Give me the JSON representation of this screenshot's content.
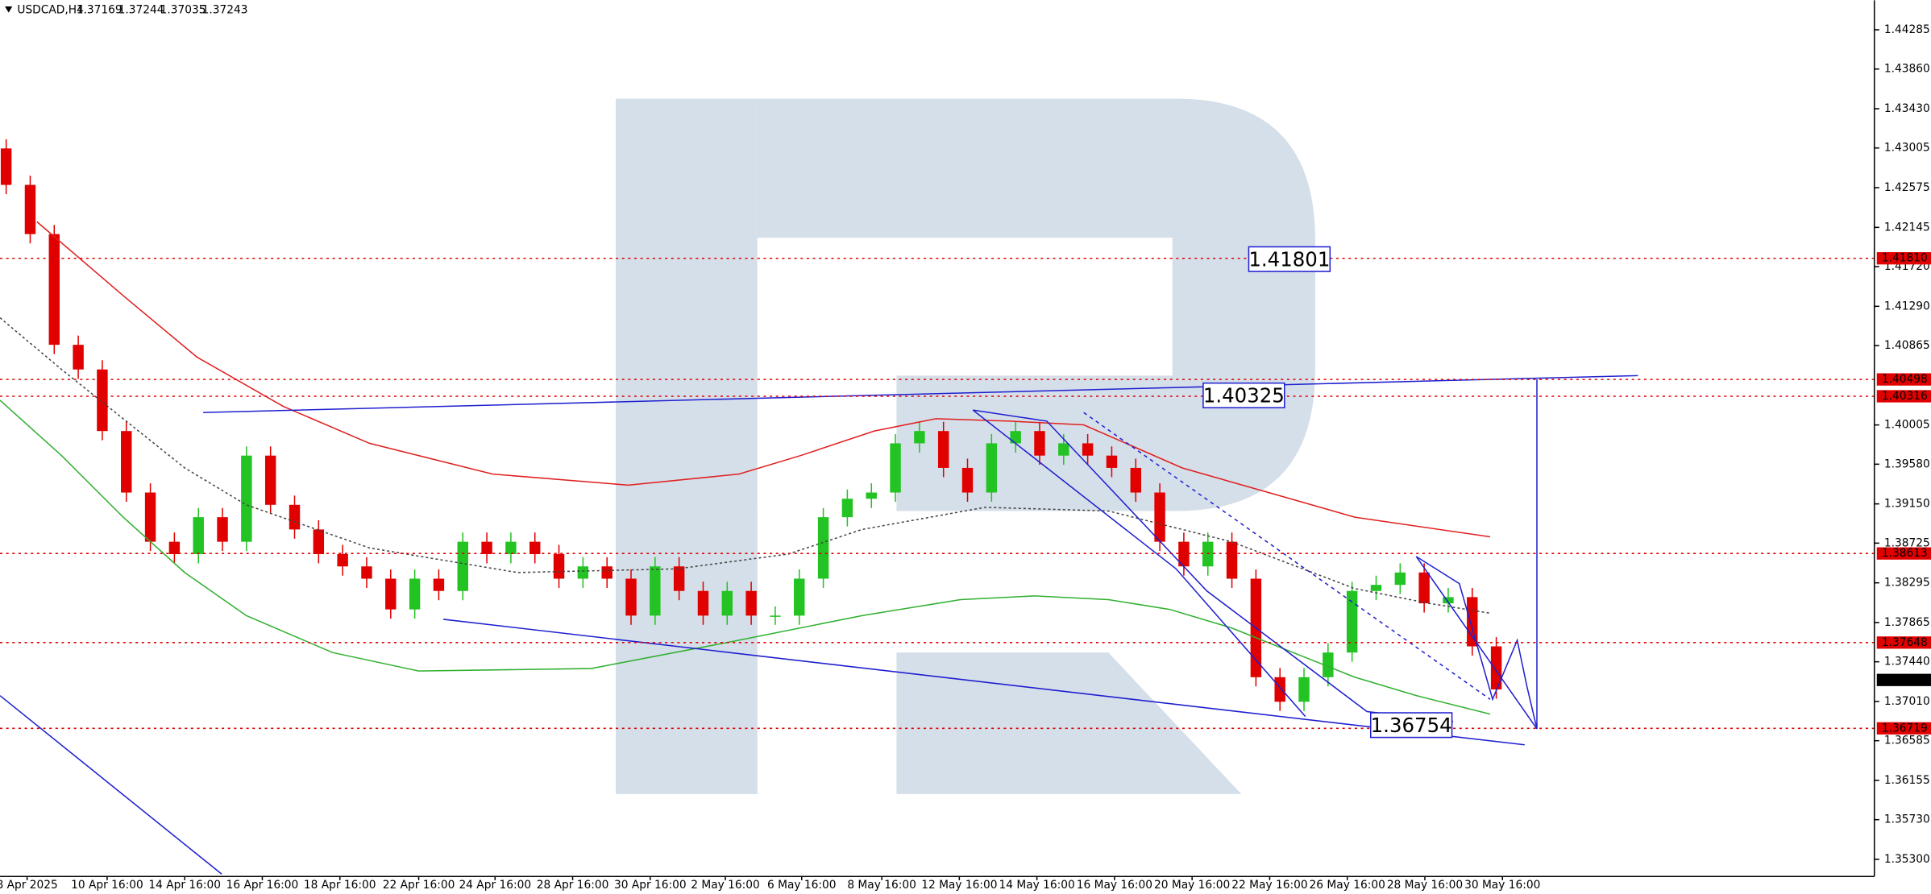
{
  "chart_data": {
    "type": "candlestick",
    "symbol": "USDCAD,H4",
    "header_values": [
      1.37169,
      1.37244,
      1.37035,
      1.37243
    ],
    "x_labels": [
      "8 Apr 2025",
      "10 Apr 16:00",
      "14 Apr 16:00",
      "16 Apr 16:00",
      "18 Apr 16:00",
      "22 Apr 16:00",
      "24 Apr 16:00",
      "28 Apr 16:00",
      "30 Apr 16:00",
      "2 May 16:00",
      "6 May 16:00",
      "8 May 16:00",
      "12 May 16:00",
      "14 May 16:00",
      "16 May 16:00",
      "20 May 16:00",
      "22 May 16:00",
      "26 May 16:00",
      "28 May 16:00",
      "30 May 16:00"
    ],
    "open": [
      1.43,
      1.42605,
      1.42072,
      1.40873,
      1.40606,
      1.39939,
      1.39273,
      1.3874,
      1.38606,
      1.39006,
      1.3874,
      1.39673,
      1.3914,
      1.38873,
      1.38606,
      1.38473,
      1.3834,
      1.38007,
      1.3834,
      1.38207,
      1.3874,
      1.38606,
      1.3874,
      1.38606,
      1.3834,
      1.38473,
      1.3834,
      1.3794,
      1.38473,
      1.38207,
      1.3794,
      1.38207,
      1.3794,
      1.3794,
      1.3834,
      1.39006,
      1.39206,
      1.39273,
      1.39806,
      1.39939,
      1.3954,
      1.39273,
      1.39806,
      1.39939,
      1.39673,
      1.39806,
      1.39673,
      1.3954,
      1.39273,
      1.3874,
      1.38473,
      1.3874,
      1.3834,
      1.37273,
      1.37007,
      1.37273,
      1.3754,
      1.38207,
      1.38273,
      1.38407,
      1.38073,
      1.3814,
      1.37607
    ],
    "high": [
      1.431,
      1.42705,
      1.42172,
      1.40973,
      1.40706,
      1.40039,
      1.39373,
      1.3884,
      1.39106,
      1.39106,
      1.39773,
      1.39773,
      1.3924,
      1.38973,
      1.38706,
      1.38573,
      1.3844,
      1.3844,
      1.3844,
      1.3884,
      1.3884,
      1.3884,
      1.3884,
      1.38706,
      1.38573,
      1.38573,
      1.3844,
      1.38573,
      1.38573,
      1.38307,
      1.38307,
      1.38307,
      1.3804,
      1.3844,
      1.39106,
      1.39306,
      1.39373,
      1.39906,
      1.40039,
      1.40039,
      1.3964,
      1.39906,
      1.40039,
      1.40039,
      1.39906,
      1.39906,
      1.39773,
      1.3964,
      1.39373,
      1.3884,
      1.3884,
      1.3884,
      1.3844,
      1.37373,
      1.37373,
      1.3764,
      1.38307,
      1.38373,
      1.38507,
      1.38507,
      1.3824,
      1.3824,
      1.37707
    ],
    "low": [
      1.42505,
      1.41972,
      1.40773,
      1.40506,
      1.39839,
      1.39173,
      1.3864,
      1.38506,
      1.38506,
      1.3864,
      1.3864,
      1.3904,
      1.38773,
      1.38506,
      1.38373,
      1.3824,
      1.37907,
      1.37907,
      1.38107,
      1.38107,
      1.38506,
      1.38506,
      1.38506,
      1.3824,
      1.3824,
      1.3824,
      1.3784,
      1.3784,
      1.38107,
      1.3784,
      1.3784,
      1.3784,
      1.3784,
      1.3784,
      1.3824,
      1.38906,
      1.39106,
      1.39173,
      1.39706,
      1.3944,
      1.39173,
      1.39173,
      1.39706,
      1.39573,
      1.39573,
      1.39573,
      1.3944,
      1.39173,
      1.3864,
      1.38373,
      1.38373,
      1.3824,
      1.37173,
      1.36907,
      1.36907,
      1.37173,
      1.3744,
      1.38107,
      1.38173,
      1.37973,
      1.37973,
      1.37507,
      1.3704
    ],
    "close": [
      1.42605,
      1.42072,
      1.40873,
      1.40606,
      1.39939,
      1.39273,
      1.3874,
      1.38606,
      1.39006,
      1.3874,
      1.39673,
      1.3914,
      1.38873,
      1.38606,
      1.38473,
      1.3834,
      1.38007,
      1.3834,
      1.38207,
      1.3874,
      1.38606,
      1.3874,
      1.38606,
      1.3834,
      1.38473,
      1.3834,
      1.3794,
      1.38473,
      1.38207,
      1.3794,
      1.38207,
      1.3794,
      1.3794,
      1.3834,
      1.39006,
      1.39206,
      1.39273,
      1.39806,
      1.39939,
      1.3954,
      1.39273,
      1.39806,
      1.39939,
      1.39673,
      1.39806,
      1.39673,
      1.3954,
      1.39273,
      1.3874,
      1.38473,
      1.3874,
      1.3834,
      1.37273,
      1.37007,
      1.37273,
      1.3754,
      1.38207,
      1.38273,
      1.38407,
      1.38073,
      1.3814,
      1.37607,
      1.3714
    ],
    "up_color": "#22c322",
    "down_color": "#e00000",
    "ylim": [
      1.35114,
      1.44605
    ],
    "yticks": [
      1.44285,
      {
        "value": 1.4386,
        "label": "1.43860"
      },
      {
        "value": 1.4343,
        "label": "1.43430"
      },
      1.43005,
      1.42575,
      1.42145,
      {
        "value": 1.4172,
        "label": "1.41720"
      },
      {
        "value": 1.4129,
        "label": "1.41290"
      },
      1.40865,
      1.40005,
      {
        "value": 1.3958,
        "label": "1.39580"
      },
      {
        "value": 1.3915,
        "label": "1.39150"
      },
      1.38725,
      1.38295,
      1.37865,
      {
        "value": 1.3744,
        "label": "1.37440"
      },
      {
        "value": 1.3701,
        "label": "1.37010"
      },
      1.36585,
      1.36155,
      {
        "value": 1.3573,
        "label": "1.35730"
      },
      {
        "value": 1.353,
        "label": "1.35300"
      }
    ],
    "levels": [
      {
        "value": 1.4181,
        "label": "1.41810"
      },
      1.40498,
      1.40316,
      1.38613,
      1.37648,
      1.36719
    ],
    "level_color": "#e00000",
    "current_price": 1.37243,
    "targets": [
      1.41801,
      1.40325,
      1.36754
    ]
  }
}
